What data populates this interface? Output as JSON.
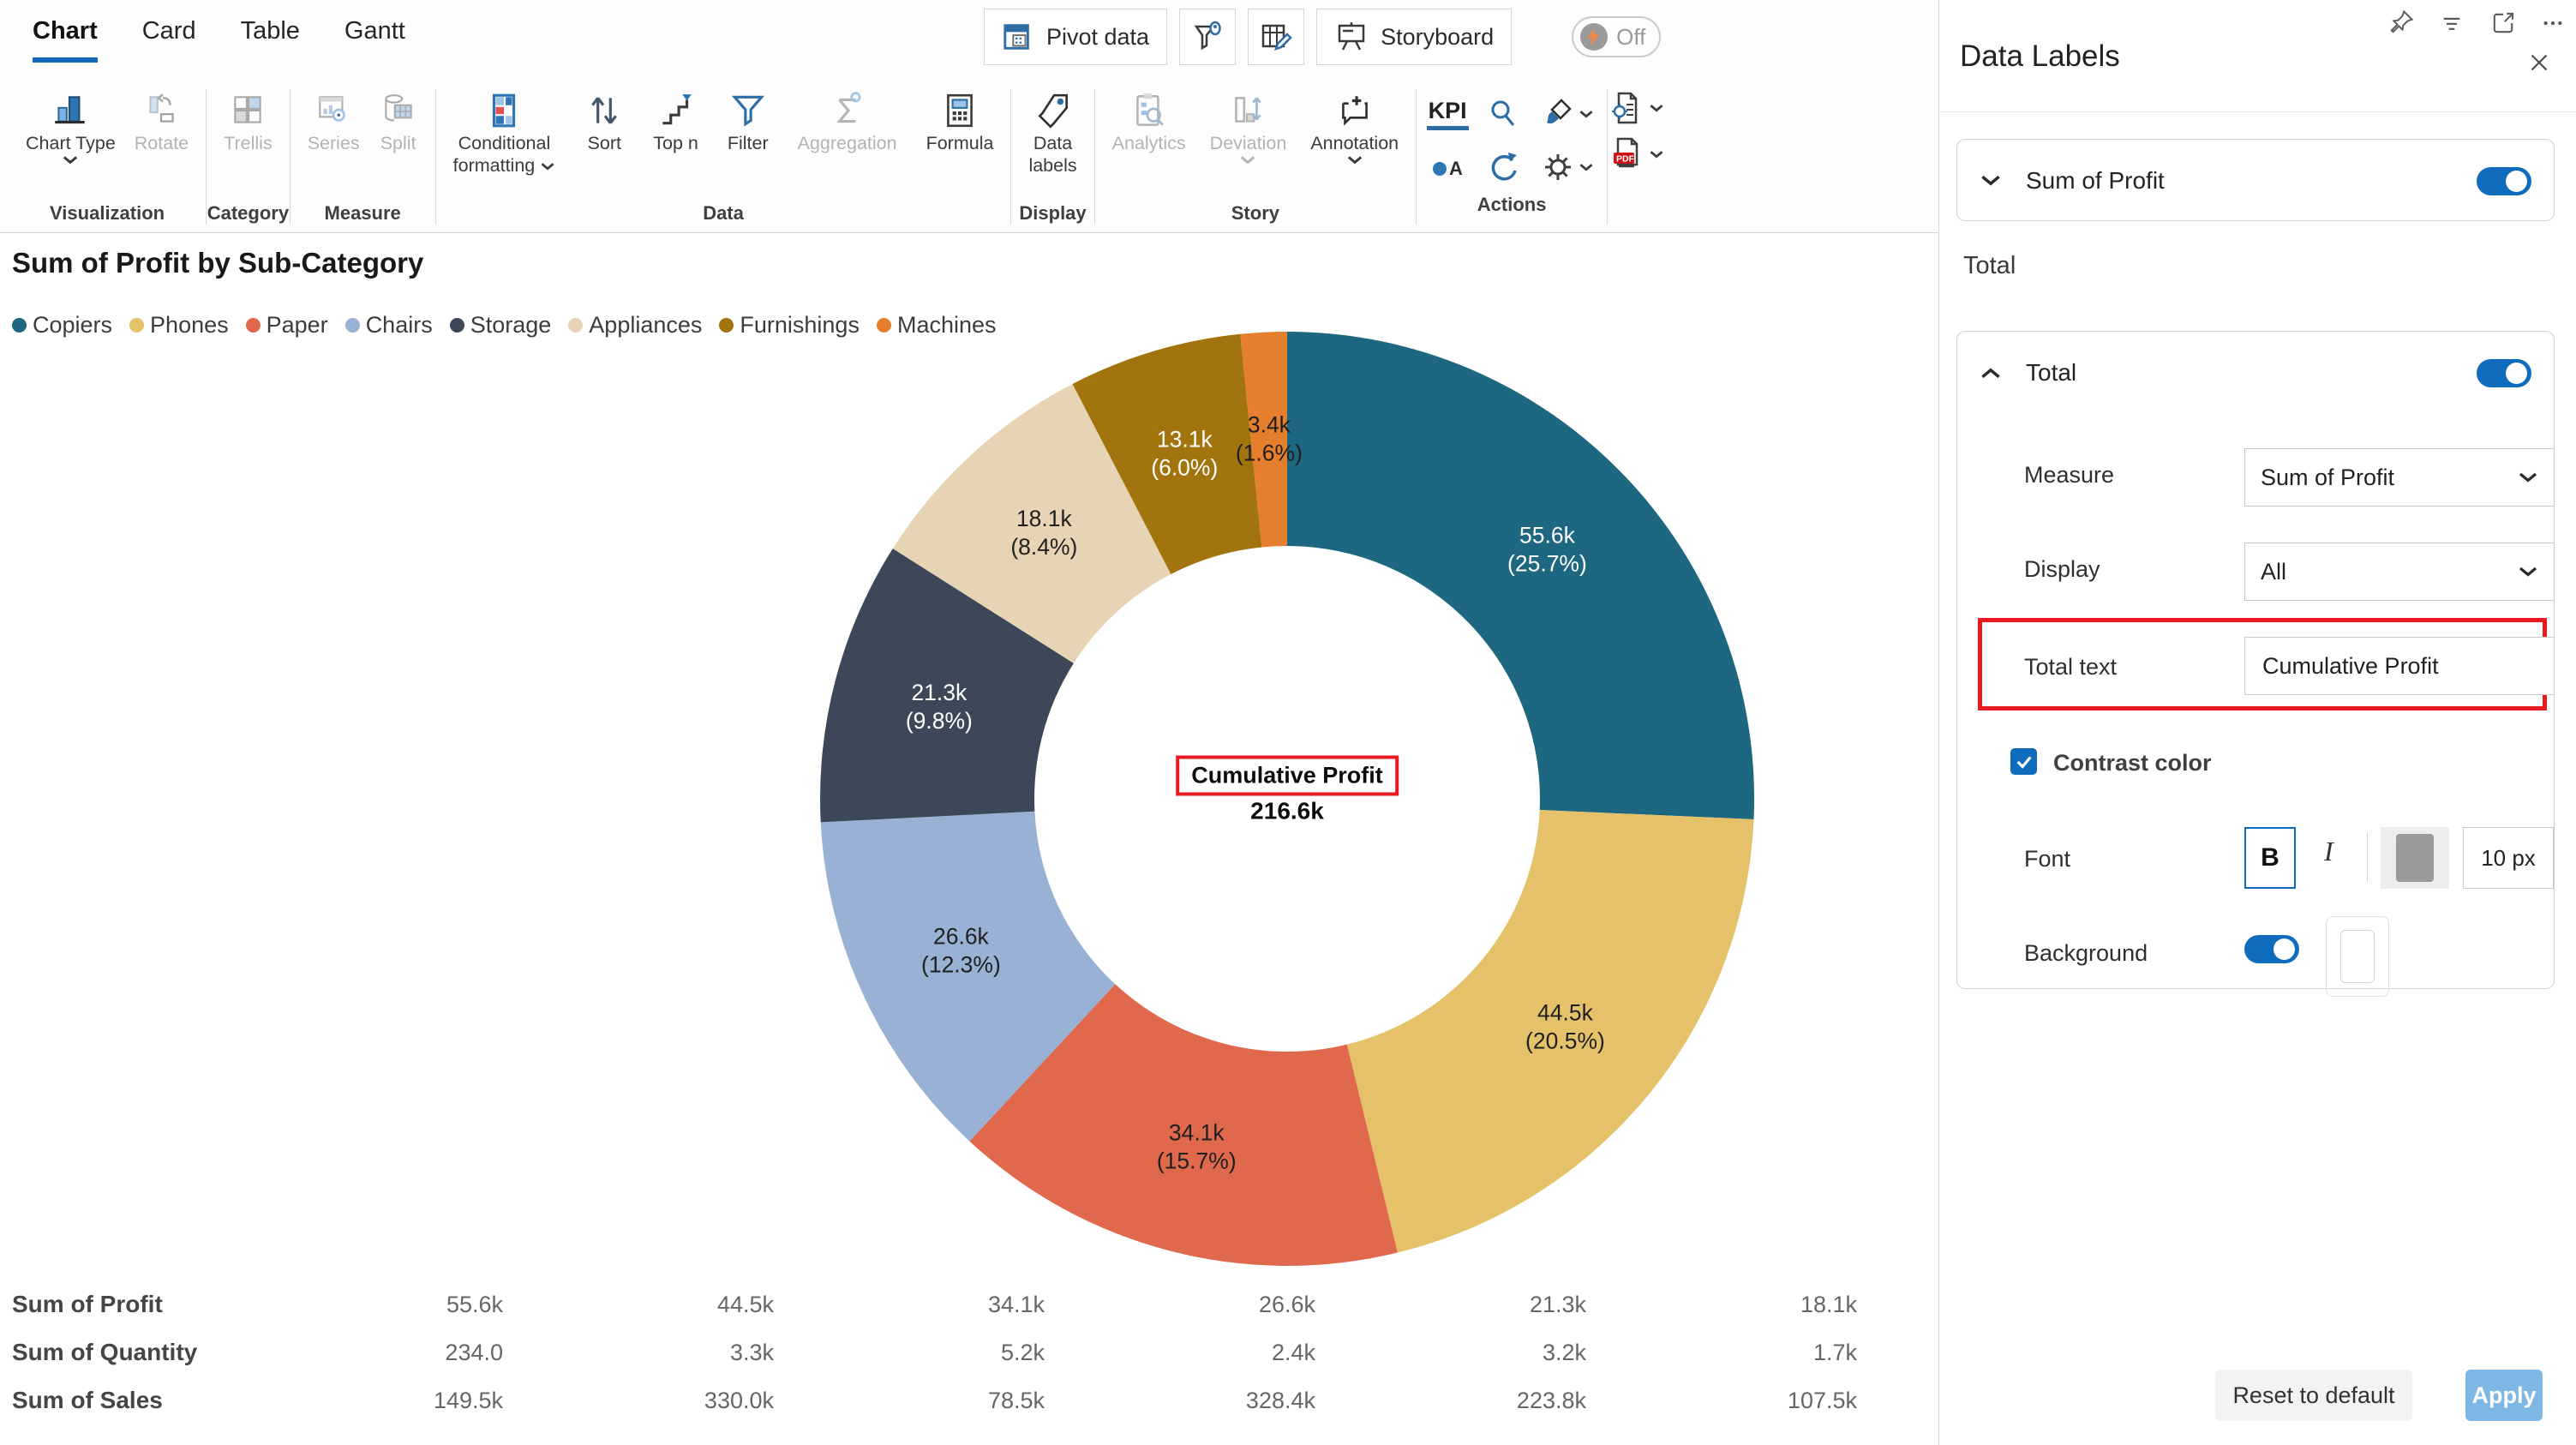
{
  "tabs": [
    {
      "label": "Chart",
      "active": true
    },
    {
      "label": "Card",
      "active": false
    },
    {
      "label": "Table",
      "active": false
    },
    {
      "label": "Gantt",
      "active": false
    }
  ],
  "top_buttons": {
    "pivot_data": "Pivot data",
    "storyboard": "Storyboard",
    "assist_state": "Off"
  },
  "ribbon": {
    "chart_type": "Chart Type",
    "rotate": "Rotate",
    "trellis": "Trellis",
    "series": "Series",
    "split": "Split",
    "conditional_line1": "Conditional",
    "conditional_line2": "formatting",
    "sort": "Sort",
    "top_n": "Top n",
    "filter": "Filter",
    "aggregation": "Aggregation",
    "formula": "Formula",
    "data_labels_line1": "Data",
    "data_labels_line2": "labels",
    "analytics": "Analytics",
    "deviation": "Deviation",
    "annotation": "Annotation",
    "kpi": "KPI",
    "group_visualization": "Visualization",
    "group_category": "Category",
    "group_measure": "Measure",
    "group_data": "Data",
    "group_display": "Display",
    "group_story": "Story",
    "group_actions": "Actions"
  },
  "chart_data": {
    "type": "pie",
    "subtype": "donut",
    "title": "Sum of Profit by Sub-Category",
    "legend_position": "top-left",
    "start_angle": "top, clockwise",
    "inner_radius_ratio": 0.54,
    "center": {
      "label": "Cumulative Profit",
      "value": "216.6k"
    },
    "slices": [
      {
        "category": "Copiers",
        "label": "55.6k",
        "pct": 25.7,
        "pct_label": "(25.7%)",
        "color": "#1d6780",
        "label_color": "#ffffff"
      },
      {
        "category": "Phones",
        "label": "44.5k",
        "pct": 20.5,
        "pct_label": "(20.5%)",
        "color": "#e5c16a",
        "label_color": "#1f1f1f"
      },
      {
        "category": "Paper",
        "label": "34.1k",
        "pct": 15.7,
        "pct_label": "(15.7%)",
        "color": "#e0694d",
        "label_color": "#1f1f1f"
      },
      {
        "category": "Chairs",
        "label": "26.6k",
        "pct": 12.3,
        "pct_label": "(12.3%)",
        "color": "#98b1d4",
        "label_color": "#1f1f1f"
      },
      {
        "category": "Storage",
        "label": "21.3k",
        "pct": 9.8,
        "pct_label": "(9.8%)",
        "color": "#3c4858",
        "label_color": "#ffffff"
      },
      {
        "category": "Appliances",
        "label": "18.1k",
        "pct": 8.4,
        "pct_label": "(8.4%)",
        "color": "#e7d4b5",
        "label_color": "#1f1f1f"
      },
      {
        "category": "Furnishings",
        "label": "13.1k",
        "pct": 6.0,
        "pct_label": "(6.0%)",
        "color": "#a1740d",
        "label_color": "#ffffff"
      },
      {
        "category": "Machines",
        "label": "3.4k",
        "pct": 1.6,
        "pct_label": "(1.6%)",
        "color": "#e57f2d",
        "label_color": "#1f1f1f"
      }
    ]
  },
  "table": {
    "rows": [
      {
        "label": "Sum of Profit",
        "values": [
          "55.6k",
          "44.5k",
          "34.1k",
          "26.6k",
          "21.3k",
          "18.1k"
        ]
      },
      {
        "label": "Sum of Quantity",
        "values": [
          "234.0",
          "3.3k",
          "5.2k",
          "2.4k",
          "3.2k",
          "1.7k"
        ]
      },
      {
        "label": "Sum of Sales",
        "values": [
          "149.5k",
          "330.0k",
          "78.5k",
          "328.4k",
          "223.8k",
          "107.5k"
        ]
      }
    ]
  },
  "panel": {
    "title": "Data Labels",
    "series_card": {
      "label": "Sum of Profit",
      "enabled": true
    },
    "section_label": "Total",
    "total_card": {
      "label": "Total",
      "enabled": true,
      "measure_label": "Measure",
      "measure_value": "Sum of Profit",
      "display_label": "Display",
      "display_value": "All",
      "total_text_label": "Total text",
      "total_text_value": "Cumulative Profit",
      "contrast_label": "Contrast color",
      "contrast_checked": true,
      "font_label": "Font",
      "bold_label": "B",
      "italic_label": "I",
      "font_size": "10 px",
      "background_label": "Background",
      "background_enabled": true
    },
    "reset_button": "Reset to default",
    "apply_button": "Apply"
  },
  "icons": {
    "pin-icon": "push-pin",
    "filter-lines-icon": "decreasing lines",
    "expand-icon": "open in new window",
    "more-icon": "…",
    "close-icon": "×",
    "bolt-icon": "lightning"
  },
  "colors": {
    "accent_blue": "#0f6cbd",
    "icon_blue": "#2e6da4",
    "annotation_red": "#e8191f",
    "apply_button": "#7db7e3",
    "disabled_gray": "#b3b3b3"
  }
}
